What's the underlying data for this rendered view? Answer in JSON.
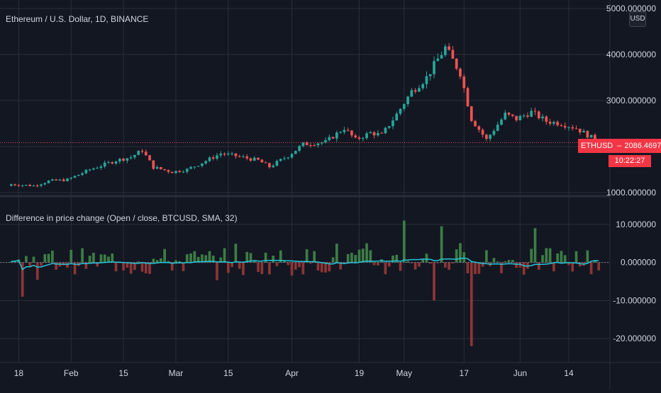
{
  "header": {
    "symbol_title": "Ethereum / U.S. Dollar, 1D, BINANCE",
    "currency_button": "USD"
  },
  "price_tag": {
    "symbol": "ETHUSD",
    "price": "2086.469748",
    "countdown": "10:22:27"
  },
  "indicator": {
    "title": "Difference in price change (Open / close, BTCUSD, SMA, 32)"
  },
  "colors": {
    "background": "#131722",
    "grid": "#2a2e39",
    "up": "#26a69a",
    "down": "#ef5350",
    "hist_up": "#3c7d44",
    "hist_down": "#8e3535",
    "sma": "#26c6da",
    "axis_text": "#d1d4dc"
  },
  "chart_data": [
    {
      "type": "candlestick",
      "symbol": "ETHUSD",
      "interval": "1D",
      "exchange": "BINANCE",
      "y_axis_labels": [
        "1000.000000",
        "2000.000000",
        "3000.000000",
        "4000.000000",
        "5000.000000"
      ],
      "ylim": [
        1000,
        5000
      ],
      "x_tick_labels": [
        "18",
        "Feb",
        "15",
        "Mar",
        "15",
        "Apr",
        "19",
        "May",
        "17",
        "Jun",
        "14"
      ],
      "last_price": 2086.469748,
      "anchors_date_close": [
        [
          "2021-01-16",
          1180
        ],
        [
          "2021-01-22",
          1150
        ],
        [
          "2021-01-26",
          1250
        ],
        [
          "2021-01-31",
          1280
        ],
        [
          "2021-02-06",
          1500
        ],
        [
          "2021-02-13",
          1700
        ],
        [
          "2021-02-17",
          1770
        ],
        [
          "2021-02-20",
          1920
        ],
        [
          "2021-02-23",
          1550
        ],
        [
          "2021-02-28",
          1450
        ],
        [
          "2021-03-04",
          1500
        ],
        [
          "2021-03-08",
          1650
        ],
        [
          "2021-03-13",
          1850
        ],
        [
          "2021-03-18",
          1780
        ],
        [
          "2021-03-23",
          1700
        ],
        [
          "2021-03-26",
          1560
        ],
        [
          "2021-03-31",
          1800
        ],
        [
          "2021-04-04",
          2050
        ],
        [
          "2021-04-10",
          2100
        ],
        [
          "2021-04-15",
          2400
        ],
        [
          "2021-04-18",
          2150
        ],
        [
          "2021-04-22",
          2300
        ],
        [
          "2021-04-25",
          2250
        ],
        [
          "2021-04-29",
          2700
        ],
        [
          "2021-05-03",
          3200
        ],
        [
          "2021-05-07",
          3500
        ],
        [
          "2021-05-10",
          3900
        ],
        [
          "2021-05-12",
          4150
        ],
        [
          "2021-05-16",
          3600
        ],
        [
          "2021-05-19",
          2600
        ],
        [
          "2021-05-23",
          2150
        ],
        [
          "2021-05-28",
          2700
        ],
        [
          "2021-05-31",
          2600
        ],
        [
          "2021-06-04",
          2750
        ],
        [
          "2021-06-08",
          2550
        ],
        [
          "2021-06-12",
          2500
        ],
        [
          "2021-06-16",
          2400
        ],
        [
          "2021-06-20",
          2200
        ],
        [
          "2021-06-22",
          2086.47
        ]
      ]
    },
    {
      "type": "bar",
      "name": "Difference in price change (Open / close, BTCUSD, SMA, 32)",
      "y_axis_labels": [
        "10.000000",
        "0.000000",
        "-10.000000",
        "-20.000000"
      ],
      "ylim": [
        -25,
        15
      ],
      "highlight_bars": [
        [
          "2021-01-19",
          -9.0
        ],
        [
          "2021-05-19",
          -22.0
        ],
        [
          "2021-05-09",
          -10.0
        ],
        [
          "2021-05-01",
          11.0
        ],
        [
          "2021-06-05",
          9.0
        ],
        [
          "2021-05-11",
          9.5
        ]
      ],
      "sma_period": 32
    }
  ]
}
